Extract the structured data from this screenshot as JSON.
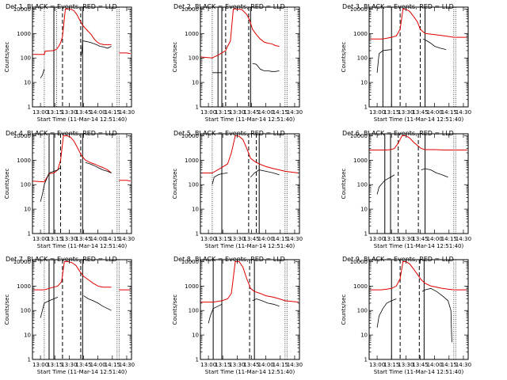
{
  "figure": {
    "panel_titles": [
      "Det 1, BLACK = Events, RED = LLD",
      "Det 2, BLACK = Events, RED = LLD",
      "Det 3, BLACK = Events, RED = LLD",
      "Det 4, BLACK = Events, RED = LLD",
      "Det 5, BLACK = Events, RED = LLD",
      "Det 6, BLACK = Events, RED = LLD",
      "Det 7, BLACK = Events, RED = LLD",
      "Det 8, BLACK = Events, RED = LLD",
      "Det 9, BLACK = Events, RED = LLD"
    ],
    "xlabel": "Start Time (11-Mar-14 12:51:40)",
    "ylabel": "Counts/sec",
    "x_tick_labels": [
      "13:00",
      "13:15",
      "13:30",
      "13:45",
      "14:00",
      "14:15",
      "14:30"
    ],
    "y_tick_labels": [
      "1",
      "10",
      "100",
      "1000",
      "10000"
    ],
    "colors": {
      "events": "#000000",
      "lld": "#e00000",
      "background": "#ffffff"
    }
  },
  "chart_data": [
    {
      "type": "line",
      "detector": 1,
      "xlim": [
        "12:51:40",
        "14:35:00"
      ],
      "yscale": "log",
      "ylim": [
        1,
        12000
      ],
      "markers": {
        "solid": [
          "13:14",
          "13:44"
        ],
        "dashed": [
          "13:23",
          "13:42"
        ],
        "dotted": [
          "13:04",
          "13:17",
          "14:20",
          "14:22"
        ]
      },
      "series": [
        {
          "name": "LLD",
          "color": "#e00000",
          "x": [
            "12:51:40",
            "13:04",
            "13:05",
            "13:14",
            "13:17",
            "13:19",
            "13:21",
            "13:23",
            "13:26",
            "13:29",
            "13:32",
            "13:35",
            "13:38",
            "13:41",
            "13:44",
            "13:47",
            "13:50",
            "13:53",
            "13:56",
            "13:59",
            "14:02",
            "14:06",
            "14:10",
            "14:14",
            "14:17",
            "14:22",
            "14:26",
            "14:30",
            "14:34"
          ],
          "y": [
            140,
            140,
            190,
            200,
            230,
            300,
            420,
            750,
            10000,
            10000,
            9800,
            8500,
            6000,
            3500,
            2200,
            1600,
            1200,
            900,
            600,
            450,
            380,
            350,
            350,
            350,
            0,
            160,
            160,
            160,
            150
          ]
        },
        {
          "name": "Events",
          "color": "#000000",
          "x": [
            "13:00",
            "13:02",
            "13:04",
            "13:05",
            "13:14",
            "13:17",
            "13:19",
            "13:21",
            "13:23",
            "13:26",
            "13:29",
            "13:33",
            "13:36",
            "13:40",
            "13:42",
            "13:43",
            "13:44",
            "13:47",
            "13:50",
            "13:53",
            "13:56",
            "13:59",
            "14:02",
            "14:06",
            "14:10",
            "14:14",
            "14:17"
          ],
          "y": [
            15,
            20,
            35,
            0,
            0,
            0,
            0,
            0,
            0,
            0,
            0,
            0,
            0,
            0,
            110,
            160,
            500,
            480,
            450,
            420,
            380,
            340,
            300,
            280,
            250,
            300,
            0
          ]
        }
      ]
    },
    {
      "type": "line",
      "detector": 2,
      "xlim": [
        "12:51:40",
        "14:35:00"
      ],
      "yscale": "log",
      "ylim": [
        1,
        12000
      ],
      "markers": {
        "solid": [
          "13:10",
          "13:14",
          "13:44"
        ],
        "dashed": [
          "13:18",
          "13:42"
        ],
        "dotted": [
          "13:04",
          "14:20",
          "14:22"
        ]
      },
      "series": [
        {
          "name": "LLD",
          "color": "#e00000",
          "x": [
            "12:51:40",
            "13:04",
            "13:06",
            "13:10",
            "13:14",
            "13:18",
            "13:20",
            "13:23",
            "13:26",
            "13:30",
            "13:35",
            "13:40",
            "13:43",
            "13:46",
            "13:50",
            "13:54",
            "13:58",
            "14:02",
            "14:06",
            "14:10",
            "14:14",
            "14:17"
          ],
          "y": [
            110,
            100,
            110,
            130,
            160,
            200,
            300,
            500,
            10000,
            10000,
            9500,
            6000,
            3500,
            1500,
            900,
            600,
            450,
            400,
            380,
            320,
            300,
            0
          ]
        },
        {
          "name": "Events",
          "color": "#000000",
          "x": [
            "13:04",
            "13:10",
            "13:14",
            "13:18",
            "13:44",
            "13:46",
            "13:50",
            "13:54",
            "13:58",
            "14:02",
            "14:06",
            "14:10",
            "14:14",
            "14:17"
          ],
          "y": [
            25,
            25,
            25,
            0,
            0,
            60,
            55,
            35,
            30,
            30,
            28,
            28,
            30,
            0
          ]
        }
      ]
    },
    {
      "type": "line",
      "detector": 3,
      "xlim": [
        "12:51:40",
        "14:35:00"
      ],
      "yscale": "log",
      "ylim": [
        1,
        12000
      ],
      "markers": {
        "solid": [
          "13:06",
          "13:15",
          "13:50"
        ],
        "dashed": [
          "13:24",
          "13:45"
        ],
        "dotted": [
          "14:20",
          "14:22"
        ]
      },
      "series": [
        {
          "name": "LLD",
          "color": "#e00000",
          "x": [
            "12:51:40",
            "13:06",
            "13:15",
            "13:20",
            "13:24",
            "13:27",
            "13:30",
            "13:34",
            "13:38",
            "13:42",
            "13:45",
            "13:50",
            "14:00",
            "14:10",
            "14:20",
            "14:34"
          ],
          "y": [
            600,
            600,
            700,
            800,
            1500,
            10000,
            9800,
            8000,
            5000,
            3000,
            1500,
            1000,
            900,
            800,
            700,
            700
          ]
        },
        {
          "name": "Events",
          "color": "#000000",
          "x": [
            "13:00",
            "13:02",
            "13:06",
            "13:10",
            "13:15",
            "13:16",
            "13:45",
            "13:48",
            "13:52",
            "13:56",
            "14:00",
            "14:06",
            "14:12",
            "14:17"
          ],
          "y": [
            25,
            150,
            200,
            210,
            220,
            0,
            0,
            600,
            500,
            400,
            300,
            250,
            220,
            0
          ]
        }
      ]
    },
    {
      "type": "line",
      "detector": 4,
      "xlim": [
        "12:51:40",
        "14:35:00"
      ],
      "yscale": "log",
      "ylim": [
        1,
        12000
      ],
      "markers": {
        "solid": [
          "13:09",
          "13:14",
          "13:44"
        ],
        "dashed": [
          "13:21",
          "13:42"
        ],
        "dotted": [
          "13:04",
          "14:20",
          "14:22"
        ]
      },
      "series": [
        {
          "name": "LLD",
          "color": "#e00000",
          "x": [
            "12:51:40",
            "13:04",
            "13:09",
            "13:14",
            "13:18",
            "13:21",
            "13:24",
            "13:27",
            "13:31",
            "13:35",
            "13:39",
            "13:43",
            "13:47",
            "13:52",
            "13:56",
            "14:00",
            "14:05",
            "14:10",
            "14:14",
            "14:17",
            "14:22",
            "14:30",
            "14:34"
          ],
          "y": [
            140,
            130,
            280,
            300,
            400,
            1000,
            10000,
            10000,
            9000,
            6000,
            3000,
            1500,
            1000,
            800,
            700,
            600,
            500,
            400,
            300,
            0,
            150,
            150,
            140
          ]
        },
        {
          "name": "Events",
          "color": "#000000",
          "x": [
            "13:00",
            "13:02",
            "13:04",
            "13:09",
            "13:14",
            "13:18",
            "13:21",
            "13:24",
            "13:44",
            "13:47",
            "13:52",
            "13:56",
            "14:00",
            "14:05",
            "14:10",
            "14:14",
            "14:17"
          ],
          "y": [
            20,
            40,
            100,
            300,
            350,
            400,
            500,
            0,
            0,
            800,
            700,
            600,
            500,
            400,
            350,
            300,
            0
          ]
        }
      ]
    },
    {
      "type": "line",
      "detector": 5,
      "xlim": [
        "12:51:40",
        "14:35:00"
      ],
      "yscale": "log",
      "ylim": [
        1,
        12000
      ],
      "markers": {
        "solid": [
          "13:14",
          "13:53"
        ],
        "dashed": [
          "13:42",
          "13:50"
        ],
        "dotted": [
          "13:04",
          "14:20",
          "14:22"
        ]
      },
      "series": [
        {
          "name": "LLD",
          "color": "#e00000",
          "x": [
            "12:51:40",
            "13:04",
            "13:14",
            "13:20",
            "13:24",
            "13:28",
            "13:32",
            "13:36",
            "13:40",
            "13:44",
            "13:48",
            "13:53",
            "14:00",
            "14:08",
            "14:14",
            "14:20",
            "14:34"
          ],
          "y": [
            300,
            300,
            500,
            700,
            2000,
            10000,
            9500,
            7000,
            3000,
            1200,
            900,
            700,
            550,
            450,
            400,
            350,
            300
          ]
        },
        {
          "name": "Events",
          "color": "#000000",
          "x": [
            "13:04",
            "13:06",
            "13:10",
            "13:14",
            "13:20",
            "13:24",
            "13:42",
            "13:44",
            "13:48",
            "13:53",
            "14:00",
            "14:08",
            "14:14",
            "14:17"
          ],
          "y": [
            100,
            200,
            250,
            280,
            300,
            0,
            0,
            200,
            300,
            400,
            350,
            300,
            250,
            0
          ]
        }
      ]
    },
    {
      "type": "line",
      "detector": 6,
      "xlim": [
        "12:51:40",
        "14:35:00"
      ],
      "yscale": "log",
      "ylim": [
        1,
        12000
      ],
      "markers": {
        "solid": [
          "13:08",
          "13:14",
          "13:50"
        ],
        "dashed": [
          "13:22",
          "13:43"
        ],
        "dotted": [
          "14:20",
          "14:22"
        ]
      },
      "series": [
        {
          "name": "LLD",
          "color": "#e00000",
          "x": [
            "12:51:40",
            "13:08",
            "13:14",
            "13:18",
            "13:22",
            "13:26",
            "13:30",
            "13:34",
            "13:38",
            "13:42",
            "13:46",
            "13:50",
            "14:00",
            "14:10",
            "14:20",
            "14:34"
          ],
          "y": [
            2600,
            2600,
            2700,
            3000,
            5000,
            10000,
            10000,
            8000,
            5500,
            4000,
            3000,
            2700,
            2700,
            2600,
            2600,
            2600
          ]
        },
        {
          "name": "Events",
          "color": "#000000",
          "x": [
            "13:00",
            "13:02",
            "13:08",
            "13:14",
            "13:18",
            "13:22",
            "13:43",
            "13:46",
            "13:50",
            "13:56",
            "14:02",
            "14:08",
            "14:14",
            "14:17"
          ],
          "y": [
            40,
            80,
            150,
            200,
            250,
            0,
            0,
            400,
            450,
            400,
            300,
            250,
            200,
            0
          ]
        }
      ]
    },
    {
      "type": "line",
      "detector": 7,
      "xlim": [
        "12:51:40",
        "14:35:00"
      ],
      "yscale": "log",
      "ylim": [
        1,
        12000
      ],
      "markers": {
        "solid": [
          "13:09",
          "13:14",
          "13:44"
        ],
        "dashed": [
          "13:23",
          "13:42"
        ],
        "dotted": [
          "13:04",
          "14:20",
          "14:22"
        ]
      },
      "series": [
        {
          "name": "LLD",
          "color": "#e00000",
          "x": [
            "12:51:40",
            "13:04",
            "13:09",
            "13:14",
            "13:18",
            "13:22",
            "13:25",
            "13:29",
            "13:33",
            "13:37",
            "13:41",
            "13:45",
            "13:50",
            "13:55",
            "14:00",
            "14:05",
            "14:10",
            "14:14",
            "14:17",
            "14:22",
            "14:34"
          ],
          "y": [
            700,
            700,
            800,
            900,
            1000,
            1500,
            10000,
            10000,
            9000,
            7000,
            4000,
            2500,
            1800,
            1300,
            1000,
            900,
            900,
            900,
            0,
            700,
            700
          ]
        },
        {
          "name": "Events",
          "color": "#000000",
          "x": [
            "13:00",
            "13:02",
            "13:04",
            "13:09",
            "13:14",
            "13:18",
            "13:23",
            "13:42",
            "13:45",
            "13:50",
            "13:55",
            "14:00",
            "14:05",
            "14:10",
            "14:14",
            "14:17"
          ],
          "y": [
            50,
            100,
            200,
            250,
            300,
            350,
            0,
            0,
            400,
            300,
            250,
            200,
            150,
            120,
            100,
            0
          ]
        }
      ]
    },
    {
      "type": "line",
      "detector": 8,
      "xlim": [
        "12:51:40",
        "14:35:00"
      ],
      "yscale": "log",
      "ylim": [
        1,
        12000
      ],
      "markers": {
        "solid": [
          "13:05",
          "13:14",
          "13:48"
        ],
        "dashed": [
          "13:43"
        ],
        "dotted": [
          "14:20",
          "14:22"
        ]
      },
      "series": [
        {
          "name": "LLD",
          "color": "#e00000",
          "x": [
            "12:51:40",
            "13:05",
            "13:14",
            "13:20",
            "13:24",
            "13:28",
            "13:32",
            "13:36",
            "13:40",
            "13:44",
            "13:48",
            "13:54",
            "14:00",
            "14:08",
            "14:14",
            "14:20",
            "14:34"
          ],
          "y": [
            220,
            220,
            250,
            300,
            500,
            10000,
            10000,
            6000,
            2000,
            800,
            600,
            500,
            400,
            350,
            300,
            250,
            220
          ]
        },
        {
          "name": "Events",
          "color": "#000000",
          "x": [
            "13:00",
            "13:02",
            "13:05",
            "13:10",
            "13:14",
            "13:20",
            "13:43",
            "13:46",
            "13:50",
            "13:56",
            "14:02",
            "14:08",
            "14:14",
            "14:17"
          ],
          "y": [
            30,
            60,
            120,
            150,
            180,
            0,
            0,
            250,
            300,
            250,
            200,
            180,
            150,
            0
          ]
        }
      ]
    },
    {
      "type": "line",
      "detector": 9,
      "xlim": [
        "12:51:40",
        "14:35:00"
      ],
      "yscale": "log",
      "ylim": [
        1,
        12000
      ],
      "markers": {
        "solid": [
          "13:15",
          "13:49"
        ],
        "dashed": [
          "13:24",
          "13:44"
        ],
        "dotted": [
          "14:20",
          "14:22"
        ]
      },
      "series": [
        {
          "name": "LLD",
          "color": "#e00000",
          "x": [
            "12:51:40",
            "13:04",
            "13:10",
            "13:15",
            "13:20",
            "13:24",
            "13:27",
            "13:30",
            "13:34",
            "13:38",
            "13:42",
            "13:46",
            "13:50",
            "13:56",
            "14:02",
            "14:08",
            "14:14",
            "14:20",
            "14:34"
          ],
          "y": [
            700,
            700,
            750,
            800,
            1000,
            2000,
            10000,
            10000,
            8000,
            5000,
            3000,
            1800,
            1300,
            1000,
            900,
            800,
            750,
            700,
            700
          ]
        },
        {
          "name": "Events",
          "color": "#000000",
          "x": [
            "13:00",
            "13:02",
            "13:06",
            "13:10",
            "13:15",
            "13:20",
            "13:24",
            "13:44",
            "13:47",
            "13:50",
            "13:56",
            "14:02",
            "14:08",
            "14:14",
            "14:17",
            "14:18"
          ],
          "y": [
            20,
            60,
            120,
            200,
            250,
            300,
            0,
            0,
            600,
            700,
            800,
            600,
            400,
            250,
            100,
            5
          ]
        }
      ]
    }
  ]
}
